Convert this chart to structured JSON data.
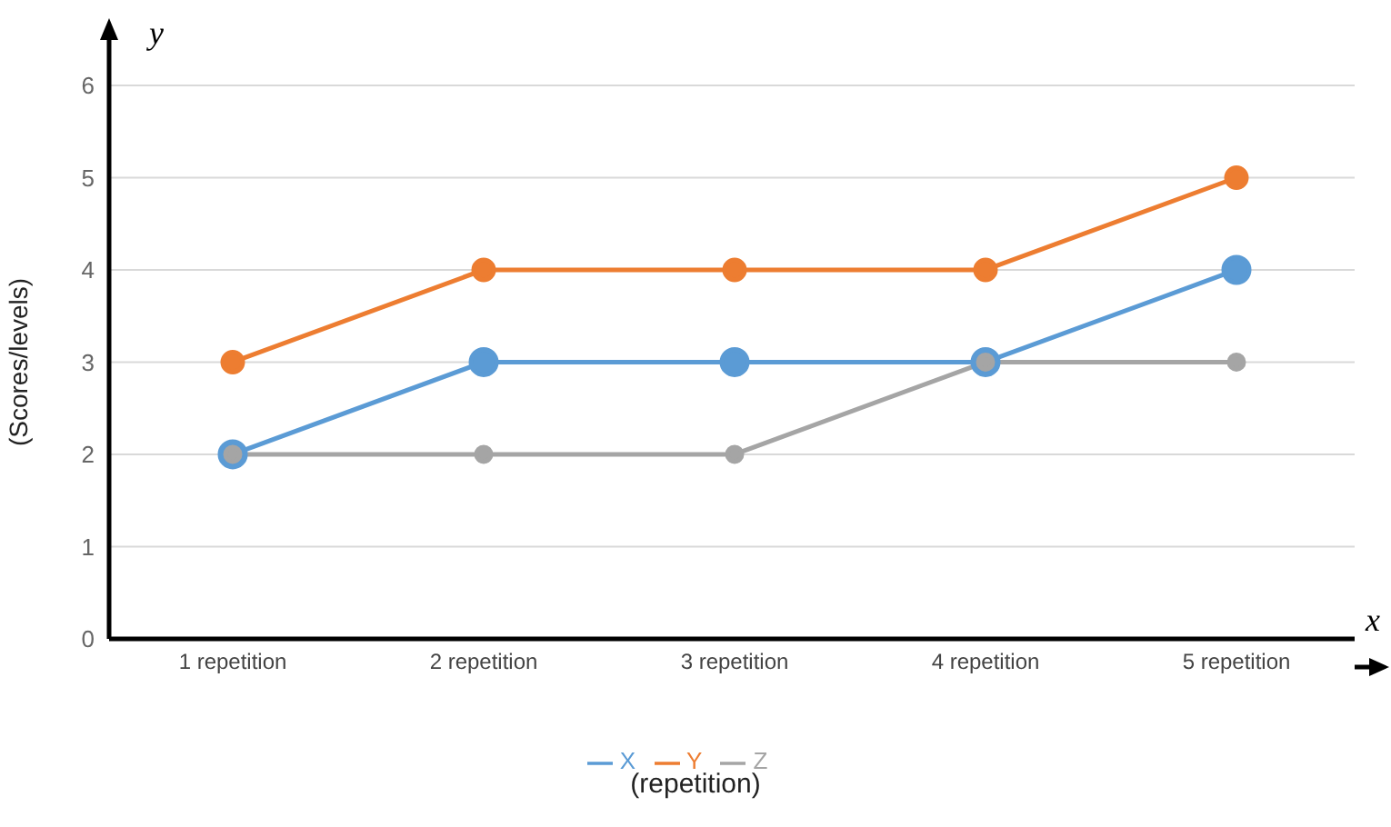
{
  "chart_data": {
    "type": "line",
    "ylabel": "(Scores/levels)",
    "xlabel": "(repetition)",
    "annotations": [
      "y",
      "x"
    ],
    "categories": [
      "1 repetition",
      "2 repetition",
      "3 repetition",
      "4 repetition",
      "5 repetition"
    ],
    "series": [
      {
        "name": "X",
        "color": "#5b9bd5",
        "values": [
          2,
          3,
          3,
          3,
          4
        ]
      },
      {
        "name": "Y",
        "color": "#ed7d31",
        "values": [
          3,
          4,
          4,
          4,
          5
        ]
      },
      {
        "name": "Z",
        "color": "#a5a5a5",
        "values": [
          2,
          2,
          2,
          3,
          3
        ]
      }
    ],
    "ylim": [
      0,
      6
    ],
    "yticks": [
      0,
      1,
      2,
      3,
      4,
      5,
      6
    ],
    "grid": "y",
    "legend": "bottom",
    "marker": "circle",
    "line_style": "solid"
  }
}
